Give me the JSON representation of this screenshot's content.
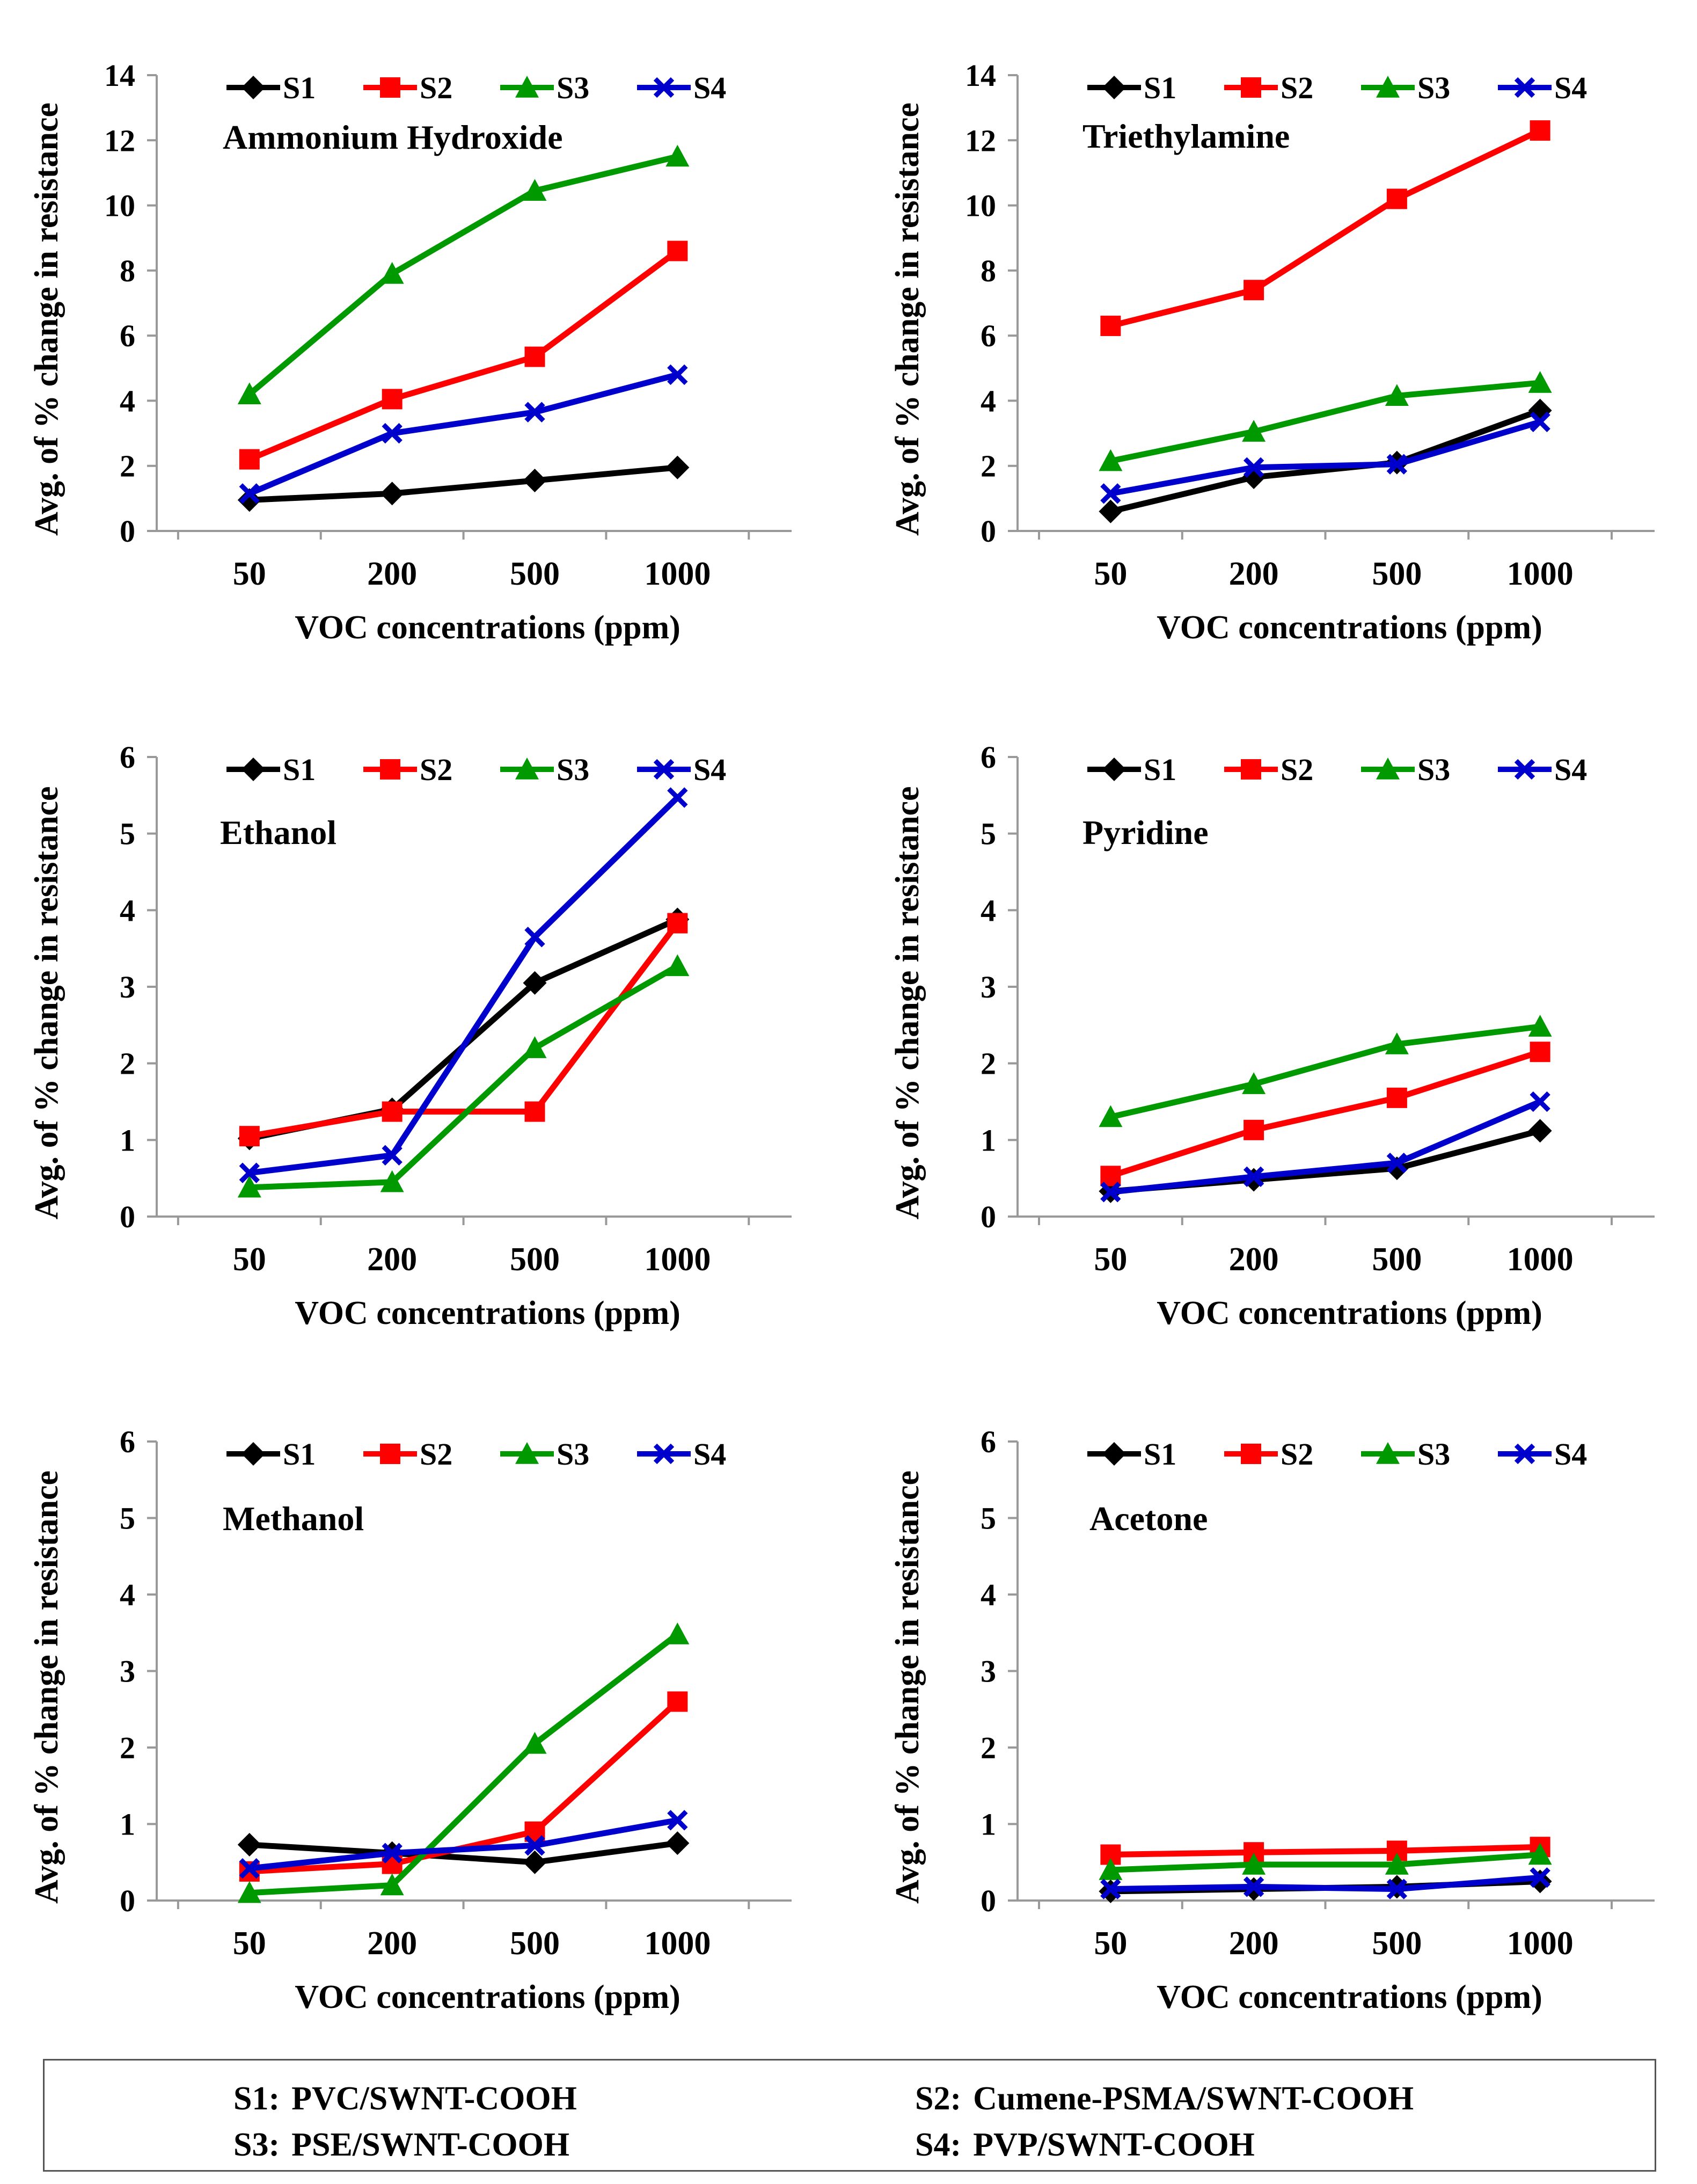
{
  "colors": {
    "S1": "#000000",
    "S2": "#ff0000",
    "S3": "#009900",
    "S4": "#0000cc",
    "axis": "#999999"
  },
  "series_markers": {
    "S1": "diamond",
    "S2": "square",
    "S3": "triangle",
    "S4": "x"
  },
  "chart_data": [
    {
      "type": "line",
      "title": "Ammonium  Hydroxide",
      "xlabel": "VOC concentrations  (ppm)",
      "ylabel": "Avg. of % change in resistance",
      "categories": [
        "50",
        "200",
        "500",
        "1000"
      ],
      "ylim": [
        0,
        14
      ],
      "yticks": [
        "0",
        "2",
        "4",
        "6",
        "8",
        "10",
        "12",
        "14"
      ],
      "legend_position": "top",
      "series": [
        {
          "name": "S1",
          "values": [
            0.95,
            1.15,
            1.55,
            1.95
          ]
        },
        {
          "name": "S2",
          "values": [
            2.2,
            4.05,
            5.35,
            8.6
          ]
        },
        {
          "name": "S3",
          "values": [
            4.2,
            7.9,
            10.45,
            11.5
          ]
        },
        {
          "name": "S4",
          "values": [
            1.15,
            3.0,
            3.65,
            4.8
          ]
        }
      ]
    },
    {
      "type": "line",
      "title": "Triethylamine",
      "xlabel": "VOC concentrations  (ppm)",
      "ylabel": "Avg. of % change in resistance",
      "categories": [
        "50",
        "200",
        "500",
        "1000"
      ],
      "ylim": [
        0,
        14
      ],
      "yticks": [
        "0",
        "2",
        "4",
        "6",
        "8",
        "10",
        "12",
        "14"
      ],
      "legend_position": "top",
      "series": [
        {
          "name": "S1",
          "values": [
            0.6,
            1.65,
            2.1,
            3.7
          ]
        },
        {
          "name": "S2",
          "values": [
            6.3,
            7.4,
            10.2,
            12.3
          ]
        },
        {
          "name": "S3",
          "values": [
            2.15,
            3.05,
            4.15,
            4.55
          ]
        },
        {
          "name": "S4",
          "values": [
            1.15,
            1.95,
            2.05,
            3.35
          ]
        }
      ]
    },
    {
      "type": "line",
      "title": "Ethanol",
      "xlabel": "VOC concentrations  (ppm)",
      "ylabel": "Avg. of % change in resistance",
      "categories": [
        "50",
        "200",
        "500",
        "1000"
      ],
      "ylim": [
        0,
        6
      ],
      "yticks": [
        "0",
        "1",
        "2",
        "3",
        "4",
        "5",
        "6"
      ],
      "legend_position": "top",
      "series": [
        {
          "name": "S1",
          "values": [
            1.02,
            1.4,
            3.05,
            3.88
          ]
        },
        {
          "name": "S2",
          "values": [
            1.05,
            1.37,
            1.37,
            3.83
          ]
        },
        {
          "name": "S3",
          "values": [
            0.38,
            0.45,
            2.2,
            3.27
          ]
        },
        {
          "name": "S4",
          "values": [
            0.57,
            0.8,
            3.65,
            5.47
          ]
        }
      ]
    },
    {
      "type": "line",
      "title": "Pyridine",
      "xlabel": "VOC concentrations  (ppm)",
      "ylabel": "Avg. of % change in resistance",
      "categories": [
        "50",
        "200",
        "500",
        "1000"
      ],
      "ylim": [
        0,
        6
      ],
      "yticks": [
        "0",
        "1",
        "2",
        "3",
        "4",
        "5",
        "6"
      ],
      "legend_position": "top",
      "series": [
        {
          "name": "S1",
          "values": [
            0.33,
            0.48,
            0.63,
            1.12
          ]
        },
        {
          "name": "S2",
          "values": [
            0.53,
            1.13,
            1.55,
            2.15
          ]
        },
        {
          "name": "S3",
          "values": [
            1.3,
            1.73,
            2.25,
            2.48
          ]
        },
        {
          "name": "S4",
          "values": [
            0.32,
            0.52,
            0.7,
            1.5
          ]
        }
      ]
    },
    {
      "type": "line",
      "title": "Methanol",
      "xlabel": "VOC concentrations  (ppm)",
      "ylabel": "Avg. of % change in resistance",
      "categories": [
        "50",
        "200",
        "500",
        "1000"
      ],
      "ylim": [
        0,
        6
      ],
      "yticks": [
        "0",
        "1",
        "2",
        "3",
        "4",
        "5",
        "6"
      ],
      "legend_position": "top",
      "series": [
        {
          "name": "S1",
          "values": [
            0.73,
            0.62,
            0.5,
            0.75
          ]
        },
        {
          "name": "S2",
          "values": [
            0.38,
            0.48,
            0.9,
            2.6
          ]
        },
        {
          "name": "S3",
          "values": [
            0.1,
            0.2,
            2.05,
            3.48
          ]
        },
        {
          "name": "S4",
          "values": [
            0.42,
            0.62,
            0.72,
            1.05
          ]
        }
      ]
    },
    {
      "type": "line",
      "title": "Acetone",
      "xlabel": "VOC concentrations  (ppm)",
      "ylabel": "Avg. of % change in resistance",
      "categories": [
        "50",
        "200",
        "500",
        "1000"
      ],
      "ylim": [
        0,
        6
      ],
      "yticks": [
        "0",
        "1",
        "2",
        "3",
        "4",
        "5",
        "6"
      ],
      "legend_position": "top",
      "series": [
        {
          "name": "S1",
          "values": [
            0.12,
            0.15,
            0.18,
            0.25
          ]
        },
        {
          "name": "S2",
          "values": [
            0.6,
            0.63,
            0.65,
            0.7
          ]
        },
        {
          "name": "S3",
          "values": [
            0.4,
            0.47,
            0.47,
            0.6
          ]
        },
        {
          "name": "S4",
          "values": [
            0.15,
            0.18,
            0.15,
            0.3
          ]
        }
      ]
    }
  ],
  "sample_key": [
    {
      "code": "S1:",
      "label": "PVC/SWNT-COOH"
    },
    {
      "code": "S2:",
      "label": "Cumene-PSMA/SWNT-COOH"
    },
    {
      "code": "S3:",
      "label": "PSE/SWNT-COOH"
    },
    {
      "code": "S4:",
      "label": "PVP/SWNT-COOH"
    }
  ]
}
